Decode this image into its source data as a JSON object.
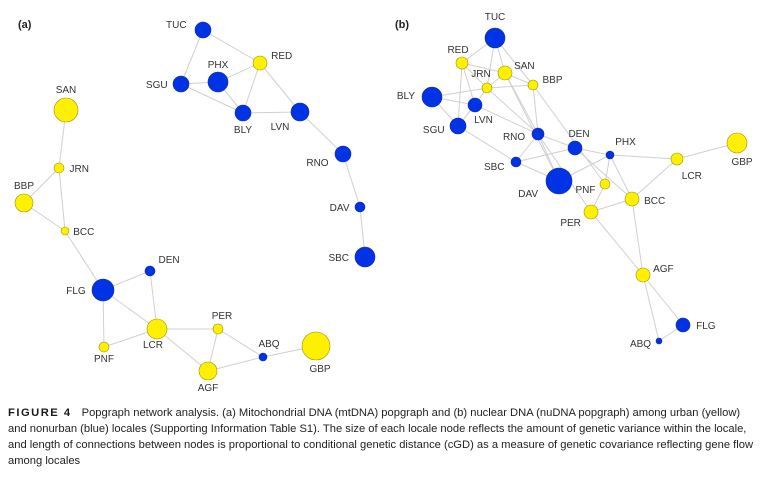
{
  "colors": {
    "urban": "#ffef00",
    "nonurban": "#0033e6",
    "edge": "#d0d0d0"
  },
  "panels": [
    {
      "label": "(a)",
      "nodes": [
        {
          "id": "TUC",
          "type": "nonurban"
        },
        {
          "id": "RED",
          "type": "urban"
        },
        {
          "id": "PHX",
          "type": "nonurban"
        },
        {
          "id": "SGU",
          "type": "nonurban"
        },
        {
          "id": "BLY",
          "type": "nonurban"
        },
        {
          "id": "LVN",
          "type": "nonurban"
        },
        {
          "id": "RNO",
          "type": "nonurban"
        },
        {
          "id": "DAV",
          "type": "nonurban"
        },
        {
          "id": "SBC",
          "type": "nonurban"
        },
        {
          "id": "SAN",
          "type": "urban"
        },
        {
          "id": "JRN",
          "type": "urban"
        },
        {
          "id": "BBP",
          "type": "urban"
        },
        {
          "id": "BCC",
          "type": "urban"
        },
        {
          "id": "FLG",
          "type": "nonurban"
        },
        {
          "id": "DEN",
          "type": "nonurban"
        },
        {
          "id": "PNF",
          "type": "urban"
        },
        {
          "id": "LCR",
          "type": "urban"
        },
        {
          "id": "PER",
          "type": "urban"
        },
        {
          "id": "ABQ",
          "type": "nonurban"
        },
        {
          "id": "AGF",
          "type": "urban"
        },
        {
          "id": "GBP",
          "type": "urban"
        }
      ],
      "edges": [
        [
          "TUC",
          "SGU"
        ],
        [
          "TUC",
          "RED"
        ],
        [
          "SGU",
          "PHX"
        ],
        [
          "PHX",
          "RED"
        ],
        [
          "SGU",
          "BLY"
        ],
        [
          "PHX",
          "BLY"
        ],
        [
          "RED",
          "BLY"
        ],
        [
          "RED",
          "LVN"
        ],
        [
          "BLY",
          "LVN"
        ],
        [
          "LVN",
          "RNO"
        ],
        [
          "RNO",
          "DAV"
        ],
        [
          "DAV",
          "SBC"
        ],
        [
          "SAN",
          "JRN"
        ],
        [
          "JRN",
          "BBP"
        ],
        [
          "JRN",
          "BCC"
        ],
        [
          "BBP",
          "BCC"
        ],
        [
          "BCC",
          "FLG"
        ],
        [
          "FLG",
          "DEN"
        ],
        [
          "FLG",
          "LCR"
        ],
        [
          "FLG",
          "PNF"
        ],
        [
          "DEN",
          "LCR"
        ],
        [
          "PNF",
          "LCR"
        ],
        [
          "LCR",
          "PER"
        ],
        [
          "LCR",
          "AGF"
        ],
        [
          "PER",
          "AGF"
        ],
        [
          "PER",
          "ABQ"
        ],
        [
          "AGF",
          "ABQ"
        ],
        [
          "ABQ",
          "GBP"
        ]
      ]
    },
    {
      "label": "(b)",
      "nodes": [
        {
          "id": "TUC",
          "type": "nonurban"
        },
        {
          "id": "RED",
          "type": "urban"
        },
        {
          "id": "SAN",
          "type": "urban"
        },
        {
          "id": "JRN",
          "type": "urban"
        },
        {
          "id": "BBP",
          "type": "urban"
        },
        {
          "id": "BLY",
          "type": "nonurban"
        },
        {
          "id": "LVN",
          "type": "nonurban"
        },
        {
          "id": "SGU",
          "type": "nonurban"
        },
        {
          "id": "RNO",
          "type": "nonurban"
        },
        {
          "id": "DEN",
          "type": "nonurban"
        },
        {
          "id": "PHX",
          "type": "nonurban"
        },
        {
          "id": "SBC",
          "type": "nonurban"
        },
        {
          "id": "DAV",
          "type": "nonurban"
        },
        {
          "id": "PNF",
          "type": "urban"
        },
        {
          "id": "BCC",
          "type": "urban"
        },
        {
          "id": "PER",
          "type": "urban"
        },
        {
          "id": "LCR",
          "type": "urban"
        },
        {
          "id": "GBP",
          "type": "urban"
        },
        {
          "id": "AGF",
          "type": "urban"
        },
        {
          "id": "FLG",
          "type": "nonurban"
        },
        {
          "id": "ABQ",
          "type": "nonurban"
        }
      ],
      "edges": [
        [
          "TUC",
          "RED"
        ],
        [
          "TUC",
          "SAN"
        ],
        [
          "TUC",
          "JRN"
        ],
        [
          "TUC",
          "BBP"
        ],
        [
          "RED",
          "SAN"
        ],
        [
          "RED",
          "JRN"
        ],
        [
          "RED",
          "SGU"
        ],
        [
          "RED",
          "LVN"
        ],
        [
          "JRN",
          "SAN"
        ],
        [
          "SAN",
          "BBP"
        ],
        [
          "JRN",
          "BBP"
        ],
        [
          "BLY",
          "JRN"
        ],
        [
          "BLY",
          "LVN"
        ],
        [
          "BLY",
          "SGU"
        ],
        [
          "JRN",
          "LVN"
        ],
        [
          "LVN",
          "SGU"
        ],
        [
          "LVN",
          "RNO"
        ],
        [
          "SAN",
          "RNO"
        ],
        [
          "JRN",
          "RNO"
        ],
        [
          "SAN",
          "DAV"
        ],
        [
          "BBP",
          "RNO"
        ],
        [
          "BBP",
          "PNF"
        ],
        [
          "SGU",
          "SBC"
        ],
        [
          "SBC",
          "RNO"
        ],
        [
          "SBC",
          "DEN"
        ],
        [
          "SBC",
          "DAV"
        ],
        [
          "RNO",
          "DEN"
        ],
        [
          "RNO",
          "DAV"
        ],
        [
          "RNO",
          "PER"
        ],
        [
          "DEN",
          "PHX"
        ],
        [
          "DEN",
          "BCC"
        ],
        [
          "PHX",
          "DAV"
        ],
        [
          "PHX",
          "PNF"
        ],
        [
          "PHX",
          "LCR"
        ],
        [
          "PHX",
          "BCC"
        ],
        [
          "PNF",
          "PER"
        ],
        [
          "PER",
          "BCC"
        ],
        [
          "BCC",
          "LCR"
        ],
        [
          "LCR",
          "GBP"
        ],
        [
          "PER",
          "AGF"
        ],
        [
          "BCC",
          "AGF"
        ],
        [
          "AGF",
          "FLG"
        ],
        [
          "AGF",
          "ABQ"
        ],
        [
          "ABQ",
          "FLG"
        ]
      ]
    }
  ],
  "caption": {
    "figure_number": "FIGURE 4",
    "text": "Popgraph network analysis. (a) Mitochondrial DNA (mtDNA) popgraph and (b) nuclear DNA (nuDNA popgraph) among urban (yellow) and nonurban (blue) locales (Supporting Information Table S1). The size of each locale node reflects the amount of genetic variance within the locale, and length of connections between nodes is proportional to conditional genetic distance (cGD) as a measure of genetic covariance reflecting gene flow among locales"
  }
}
